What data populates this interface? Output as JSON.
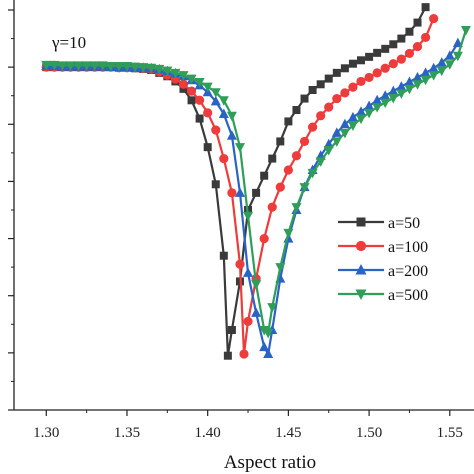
{
  "chart_data": {
    "type": "line",
    "title": "",
    "xlabel": "Aspect ratio",
    "ylabel": "",
    "annotation": "γ=10",
    "xlim": [
      1.28,
      1.565
    ],
    "ylim": [
      0,
      7
    ],
    "x_ticks": [
      1.3,
      1.35,
      1.4,
      1.45,
      1.5,
      1.55
    ],
    "x_tick_labels": [
      "1.30",
      "1.35",
      "1.40",
      "1.45",
      "1.50",
      "1.55"
    ],
    "y_ticks": [
      0,
      1,
      2,
      3,
      4,
      5,
      6,
      7
    ],
    "grid": false,
    "legend_position": "right-middle",
    "series": [
      {
        "name": "a=50",
        "color": "#3a3a3a",
        "marker": "square",
        "x": [
          1.3,
          1.305,
          1.31,
          1.315,
          1.32,
          1.325,
          1.33,
          1.335,
          1.34,
          1.345,
          1.35,
          1.355,
          1.36,
          1.365,
          1.37,
          1.375,
          1.38,
          1.385,
          1.39,
          1.395,
          1.4,
          1.405,
          1.41,
          1.4125,
          1.415,
          1.42,
          1.425,
          1.43,
          1.435,
          1.44,
          1.445,
          1.45,
          1.455,
          1.46,
          1.465,
          1.47,
          1.475,
          1.48,
          1.485,
          1.49,
          1.495,
          1.5,
          1.505,
          1.51,
          1.515,
          1.52,
          1.525,
          1.53,
          1.535
        ],
        "y": [
          6.0,
          6.0,
          6.0,
          6.0,
          6.0,
          6.0,
          6.0,
          6.0,
          6.0,
          5.99,
          5.99,
          5.98,
          5.97,
          5.95,
          5.9,
          5.84,
          5.75,
          5.62,
          5.42,
          5.1,
          4.6,
          3.95,
          2.7,
          0.95,
          1.4,
          2.25,
          3.5,
          3.8,
          4.1,
          4.4,
          4.7,
          5.05,
          5.25,
          5.45,
          5.6,
          5.7,
          5.8,
          5.9,
          5.98,
          6.06,
          6.12,
          6.18,
          6.25,
          6.32,
          6.4,
          6.5,
          6.62,
          6.78,
          7.05
        ]
      },
      {
        "name": "a=100",
        "color": "#ee3b3b",
        "marker": "circle",
        "x": [
          1.3,
          1.305,
          1.31,
          1.315,
          1.32,
          1.325,
          1.33,
          1.335,
          1.34,
          1.345,
          1.35,
          1.355,
          1.36,
          1.365,
          1.37,
          1.375,
          1.38,
          1.385,
          1.39,
          1.395,
          1.4,
          1.405,
          1.41,
          1.415,
          1.42,
          1.4225,
          1.425,
          1.43,
          1.435,
          1.44,
          1.445,
          1.45,
          1.455,
          1.46,
          1.465,
          1.47,
          1.475,
          1.48,
          1.485,
          1.49,
          1.495,
          1.5,
          1.505,
          1.51,
          1.515,
          1.52,
          1.525,
          1.53,
          1.535,
          1.54
        ],
        "y": [
          6.0,
          6.0,
          6.0,
          6.0,
          6.0,
          6.0,
          6.0,
          6.0,
          6.0,
          5.99,
          5.99,
          5.99,
          5.98,
          5.96,
          5.92,
          5.86,
          5.79,
          5.7,
          5.58,
          5.42,
          5.2,
          4.9,
          4.4,
          3.8,
          2.55,
          0.98,
          1.55,
          2.3,
          3.0,
          3.55,
          3.9,
          4.2,
          4.45,
          4.7,
          4.95,
          5.15,
          5.3,
          5.45,
          5.55,
          5.65,
          5.75,
          5.82,
          5.9,
          5.98,
          6.06,
          6.14,
          6.24,
          6.36,
          6.52,
          6.85
        ]
      },
      {
        "name": "a=200",
        "color": "#2a63c6",
        "marker": "triangle-up",
        "x": [
          1.3,
          1.305,
          1.31,
          1.315,
          1.32,
          1.325,
          1.33,
          1.335,
          1.34,
          1.345,
          1.35,
          1.355,
          1.36,
          1.365,
          1.37,
          1.375,
          1.38,
          1.385,
          1.39,
          1.395,
          1.4,
          1.405,
          1.41,
          1.415,
          1.42,
          1.425,
          1.43,
          1.435,
          1.4375,
          1.44,
          1.445,
          1.45,
          1.455,
          1.46,
          1.465,
          1.47,
          1.475,
          1.48,
          1.485,
          1.49,
          1.495,
          1.5,
          1.505,
          1.51,
          1.515,
          1.52,
          1.525,
          1.53,
          1.535,
          1.54,
          1.545,
          1.55,
          1.555
        ],
        "y": [
          6.02,
          6.02,
          6.01,
          6.01,
          6.01,
          6.01,
          6.01,
          6.01,
          6.0,
          6.0,
          6.0,
          5.99,
          5.99,
          5.98,
          5.96,
          5.93,
          5.89,
          5.84,
          5.77,
          5.68,
          5.56,
          5.4,
          5.18,
          4.8,
          3.8,
          2.4,
          1.7,
          1.1,
          0.98,
          1.4,
          2.3,
          3.0,
          3.5,
          3.9,
          4.2,
          4.45,
          4.65,
          4.85,
          5.0,
          5.12,
          5.22,
          5.32,
          5.42,
          5.5,
          5.58,
          5.66,
          5.74,
          5.82,
          5.9,
          5.98,
          6.08,
          6.2,
          6.42
        ]
      },
      {
        "name": "a=500",
        "color": "#2e9e58",
        "marker": "triangle-down",
        "x": [
          1.3,
          1.305,
          1.31,
          1.315,
          1.32,
          1.325,
          1.33,
          1.335,
          1.34,
          1.345,
          1.35,
          1.355,
          1.36,
          1.365,
          1.37,
          1.375,
          1.38,
          1.385,
          1.39,
          1.395,
          1.4,
          1.405,
          1.41,
          1.415,
          1.42,
          1.425,
          1.43,
          1.435,
          1.4375,
          1.44,
          1.445,
          1.45,
          1.455,
          1.46,
          1.465,
          1.47,
          1.475,
          1.48,
          1.485,
          1.49,
          1.495,
          1.5,
          1.505,
          1.51,
          1.515,
          1.52,
          1.525,
          1.53,
          1.535,
          1.54,
          1.545,
          1.55,
          1.555,
          1.56
        ],
        "y": [
          6.04,
          6.04,
          6.03,
          6.03,
          6.03,
          6.03,
          6.03,
          6.03,
          6.02,
          6.02,
          6.02,
          6.01,
          6.0,
          5.99,
          5.97,
          5.94,
          5.9,
          5.86,
          5.8,
          5.74,
          5.66,
          5.56,
          5.42,
          5.15,
          4.6,
          3.4,
          2.2,
          1.4,
          1.35,
          1.8,
          2.5,
          3.1,
          3.55,
          3.9,
          4.15,
          4.35,
          4.55,
          4.7,
          4.85,
          4.98,
          5.1,
          5.2,
          5.3,
          5.38,
          5.46,
          5.54,
          5.62,
          5.7,
          5.78,
          5.86,
          5.94,
          6.05,
          6.2,
          6.65
        ]
      }
    ]
  }
}
